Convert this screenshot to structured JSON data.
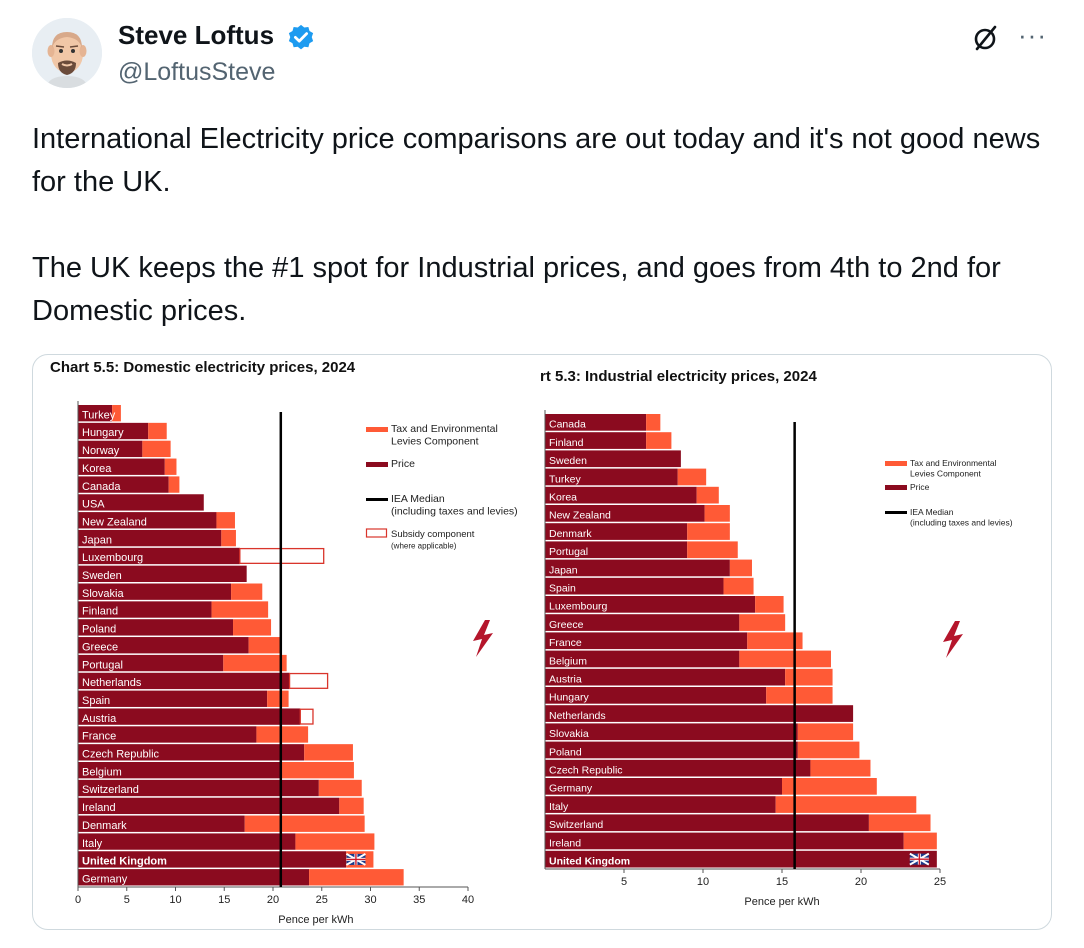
{
  "author": {
    "name": "Steve Loftus",
    "handle": "@LoftusSteve"
  },
  "icons": {
    "verified": "verified-badge-icon",
    "grok": "grok-icon",
    "more": "more-options-icon"
  },
  "tweet": {
    "text": "International Electricity price comparisons are out today and it's not good news for the UK.\n\nThe UK keeps the #1 spot for Industrial prices, and goes from 4th to 2nd for Domestic prices."
  },
  "colors": {
    "price": "#8b0b1f",
    "tax": "#ff5a36",
    "median": "#000000",
    "verified": "#1d9bf0",
    "lightning": "#b5152b"
  },
  "chart_data": [
    {
      "type": "bar",
      "orientation": "horizontal",
      "stacked": true,
      "title": "Chart 5.5: Domestic electricity prices, 2024",
      "xlabel": "Pence per kWh",
      "xlim": [
        0,
        40
      ],
      "xticks": [
        0,
        5,
        10,
        15,
        20,
        25,
        30,
        35,
        40
      ],
      "median": 20.8,
      "categories": [
        "Turkey",
        "Hungary",
        "Norway",
        "Korea",
        "Canada",
        "USA",
        "New Zealand",
        "Japan",
        "Luxembourg",
        "Sweden",
        "Slovakia",
        "Finland",
        "Poland",
        "Greece",
        "Portugal",
        "Netherlands",
        "Spain",
        "Austria",
        "France",
        "Czech Republic",
        "Belgium",
        "Switzerland",
        "Ireland",
        "Denmark",
        "Italy",
        "United Kingdom",
        "Germany"
      ],
      "series": [
        {
          "name": "Price",
          "values": [
            3.5,
            7.2,
            6.6,
            8.9,
            9.3,
            12.9,
            14.2,
            14.7,
            16.6,
            17.3,
            15.7,
            13.7,
            15.9,
            17.5,
            14.9,
            21.7,
            19.4,
            22.8,
            18.3,
            23.2,
            20.8,
            24.7,
            26.8,
            17.1,
            22.3,
            27.5,
            23.7
          ]
        },
        {
          "name": "Tax and Environmental Levies Component",
          "values": [
            0.9,
            1.9,
            2.9,
            1.2,
            1.1,
            0,
            1.9,
            1.5,
            0,
            0,
            3.2,
            5.8,
            3.9,
            3.4,
            6.5,
            0,
            2.2,
            0,
            5.3,
            5.0,
            7.5,
            4.4,
            2.5,
            12.3,
            8.1,
            2.8,
            9.7
          ]
        },
        {
          "name": "Subsidy component (where applicable)",
          "values": [
            0,
            0,
            0,
            0,
            0,
            0,
            0,
            0,
            8.6,
            0,
            0,
            0,
            0,
            0,
            0,
            3.9,
            0,
            1.3,
            0,
            0,
            0,
            0,
            0,
            0,
            0,
            0,
            0
          ]
        }
      ],
      "highlight": "United Kingdom",
      "legend": [
        "Tax and Environmental Levies Component",
        "Price",
        "IEA Median (including taxes and levies)",
        "Subsidy component (where applicable)"
      ]
    },
    {
      "type": "bar",
      "orientation": "horizontal",
      "stacked": true,
      "title": "rt 5.3: Industrial electricity prices, 2024",
      "xlabel": "Pence per kWh",
      "xlim": [
        0,
        25
      ],
      "xticks": [
        5,
        10,
        15,
        20,
        25
      ],
      "median": 15.8,
      "categories": [
        "Canada",
        "Finland",
        "Sweden",
        "Turkey",
        "Korea",
        "New Zealand",
        "Denmark",
        "Portugal",
        "Japan",
        "Spain",
        "Luxembourg",
        "Greece",
        "France",
        "Belgium",
        "Austria",
        "Hungary",
        "Netherlands",
        "Slovakia",
        "Poland",
        "Czech Republic",
        "Germany",
        "Italy",
        "Switzerland",
        "Ireland",
        "United Kingdom"
      ],
      "series": [
        {
          "name": "Price",
          "values": [
            6.4,
            6.4,
            8.6,
            8.4,
            9.6,
            10.1,
            9.0,
            9.0,
            11.7,
            11.3,
            13.3,
            12.3,
            12.8,
            12.3,
            15.2,
            14.0,
            19.5,
            16.0,
            16.0,
            16.8,
            15.0,
            14.6,
            20.5,
            22.7,
            24.8
          ]
        },
        {
          "name": "Tax and Environmental Levies Component",
          "values": [
            0.9,
            1.6,
            0,
            1.8,
            1.4,
            1.6,
            2.7,
            3.2,
            1.4,
            1.9,
            1.8,
            2.9,
            3.5,
            5.8,
            3.0,
            4.2,
            0,
            3.5,
            3.9,
            3.8,
            6.0,
            8.9,
            3.9,
            2.1,
            0
          ]
        }
      ],
      "highlight": "United Kingdom",
      "legend": [
        "Tax and Environmental Levies Component",
        "Price",
        "IEA Median (including taxes and levies)"
      ]
    }
  ]
}
